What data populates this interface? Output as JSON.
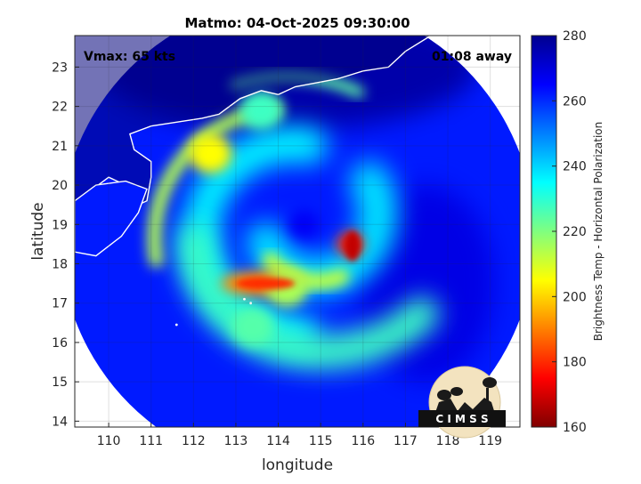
{
  "figure": {
    "title": "Matmo: 04-Oct-2025 09:30:00",
    "vmax_label": "Vmax: 65 kts",
    "away_label": "01:08 away",
    "logo_text": "C I M S S"
  },
  "chart_data": {
    "type": "heatmap",
    "title": "Matmo: 04-Oct-2025 09:30:00",
    "xlabel": "longitude",
    "ylabel": "latitude",
    "xlim": [
      109.2,
      119.7
    ],
    "ylim": [
      13.85,
      23.8
    ],
    "x_ticks": [
      110,
      111,
      112,
      113,
      114,
      115,
      116,
      117,
      118,
      119
    ],
    "y_ticks": [
      14,
      15,
      16,
      17,
      18,
      19,
      20,
      21,
      22,
      23
    ],
    "grid": true,
    "colorbar": {
      "label": "Brightness Temp - Horizontal Polarization",
      "range": [
        160,
        280
      ],
      "ticks": [
        160,
        180,
        200,
        220,
        240,
        260,
        280
      ],
      "colormap": "jet"
    },
    "annotations": [
      "Vmax: 65 kts",
      "01:08 away"
    ],
    "storm": {
      "name": "Matmo",
      "eye_lon": 114.6,
      "eye_lat": 19.0,
      "scan_center_lon": 114.45,
      "scan_center_lat": 18.7,
      "scan_radius_deg": 5.6,
      "background_temp": 262
    },
    "features": [
      {
        "name": "eye",
        "lon": 114.6,
        "lat": 19.0,
        "temp": 266
      },
      {
        "name": "eyewall-east",
        "lon": 115.7,
        "lat": 18.5,
        "temp": 178
      },
      {
        "name": "band-south-core",
        "lon": 113.6,
        "lat": 17.5,
        "temp": 192
      },
      {
        "name": "band-south",
        "lon": 114.2,
        "lat": 17.4,
        "temp": 215
      },
      {
        "name": "band-north",
        "lon": 112.4,
        "lat": 20.8,
        "temp": 205
      },
      {
        "name": "band-northeast",
        "lon": 113.6,
        "lat": 21.9,
        "temp": 228
      },
      {
        "name": "band-outer-south",
        "lon": 113.4,
        "lat": 16.4,
        "temp": 225
      }
    ],
    "colors": {
      "deep_blue": "#00008f",
      "background_blue": "#0d3fe0",
      "cyan": "#00ffff",
      "yellow": "#ffff00",
      "red": "#ff0000",
      "dark_red": "#800000",
      "coastline": "#ffffff"
    }
  }
}
